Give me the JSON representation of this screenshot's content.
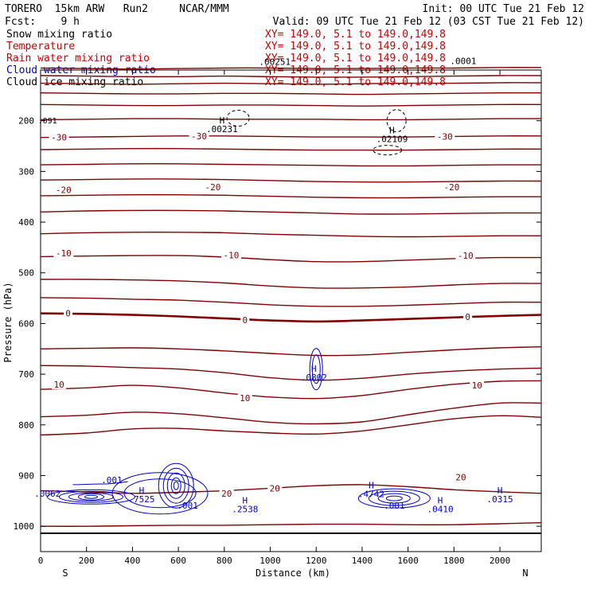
{
  "header": {
    "model": "TORERO  15km ARW   Run2     NCAR/MMM",
    "init": "Init: 00 UTC Tue 21 Feb 12",
    "fcst": "Fcst:    9 h",
    "valid": "Valid: 09 UTC Tue 21 Feb 12 (03 CST Tue 21 Feb 12)"
  },
  "colors": {
    "snow": "#000000",
    "temperature": "#800000",
    "rain": "#cc0000",
    "cloud_water": "#0000cc",
    "cloud_ice": "#000000",
    "axis": "#000000"
  },
  "legend": [
    {
      "name": "Snow mixing ratio",
      "xy": "XY= 149.0,  5.1 to 149.0,149.8",
      "color": "#000000"
    },
    {
      "name": "Temperature",
      "xy": "XY= 149.0,  5.1 to 149.0,149.8",
      "color": "#cc0000"
    },
    {
      "name": "Rain water mixing ratio",
      "xy": "XY= 149.0,  5.1 to 149.0,149.8",
      "color": "#cc0000"
    },
    {
      "name": "Cloud water mixing ratio",
      "xy": "XY= 149.0,  5.1 to 149.0,149.8",
      "color": "#0000cc"
    },
    {
      "name": "Cloud ice mixing ratio",
      "xy": "XY= 149.0,  5.1 to 149.0,149.8",
      "color": "#000000"
    }
  ],
  "overlap_labels": [
    {
      "text": ".00251",
      "x_km": 1020,
      "p": 90
    },
    {
      "text": ".0001",
      "x_km": 1840,
      "p": 88
    }
  ],
  "chart_data": {
    "type": "cross-section",
    "xlabel": "Distance (km)",
    "ylabel": "Pressure (hPa)",
    "xlim": [
      0,
      2180
    ],
    "plim": [
      100,
      1050
    ],
    "xticks": [
      0,
      200,
      400,
      600,
      800,
      1000,
      1200,
      1400,
      1600,
      1800,
      2000
    ],
    "yticks": [
      200,
      300,
      400,
      500,
      600,
      700,
      800,
      900,
      1000
    ],
    "x_ends": {
      "left": "S",
      "right": "N"
    },
    "temperature_isotherms": [
      {
        "p": [
          96,
          97,
          98,
          97,
          96,
          96,
          97,
          97,
          96,
          96,
          95,
          95
        ]
      },
      {
        "p": [
          111,
          112,
          113,
          113,
          112,
          113,
          114,
          114,
          113,
          112,
          111,
          111
        ]
      },
      {
        "p": [
          126,
          127,
          128,
          127,
          126,
          127,
          128,
          127,
          126,
          126,
          125,
          125
        ]
      },
      {
        "p": [
          145,
          146,
          147,
          147,
          146,
          146,
          147,
          148,
          147,
          146,
          145,
          145
        ]
      },
      {
        "p": [
          168,
          169,
          170,
          170,
          169,
          169,
          170,
          171,
          170,
          169,
          168,
          168
        ]
      },
      {
        "p": [
          198,
          197,
          196,
          196,
          197,
          197,
          197,
          198,
          198,
          197,
          196,
          196
        ]
      },
      {
        "p": [
          233,
          232,
          231,
          230,
          230,
          231,
          232,
          232,
          232,
          231,
          230,
          230
        ]
      },
      {
        "p": [
          257,
          256,
          255,
          255,
          256,
          257,
          258,
          258,
          258,
          257,
          256,
          256
        ]
      },
      {
        "p": [
          287,
          286,
          285,
          285,
          286,
          287,
          288,
          289,
          289,
          288,
          287,
          287
        ]
      },
      {
        "p": [
          317,
          316,
          315,
          315,
          316,
          318,
          320,
          321,
          321,
          320,
          319,
          319
        ]
      },
      {
        "p": [
          348,
          347,
          346,
          346,
          347,
          349,
          351,
          352,
          352,
          351,
          350,
          350
        ]
      },
      {
        "p": [
          380,
          378,
          377,
          377,
          378,
          380,
          382,
          384,
          384,
          383,
          382,
          382
        ]
      },
      {
        "p": [
          423,
          421,
          420,
          420,
          421,
          424,
          426,
          428,
          429,
          428,
          427,
          427
        ]
      },
      {
        "p": [
          468,
          467,
          466,
          466,
          469,
          474,
          478,
          478,
          475,
          472,
          470,
          470
        ]
      },
      {
        "p": [
          513,
          513,
          514,
          516,
          520,
          526,
          530,
          530,
          528,
          524,
          521,
          521
        ]
      },
      {
        "p": [
          549,
          550,
          552,
          554,
          558,
          563,
          566,
          566,
          564,
          561,
          558,
          558
        ]
      },
      {
        "p": [
          580,
          581,
          583,
          586,
          590,
          594,
          596,
          594,
          591,
          588,
          585,
          583
        ]
      },
      {
        "p": [
          650,
          649,
          648,
          650,
          654,
          659,
          663,
          662,
          657,
          652,
          648,
          646
        ]
      },
      {
        "p": [
          683,
          684,
          687,
          690,
          697,
          707,
          712,
          708,
          700,
          694,
          690,
          688
        ]
      },
      {
        "p": [
          730,
          727,
          722,
          727,
          737,
          745,
          748,
          742,
          730,
          720,
          714,
          713
        ]
      },
      {
        "p": [
          784,
          781,
          775,
          778,
          786,
          795,
          798,
          794,
          780,
          767,
          757,
          757
        ]
      },
      {
        "p": [
          820,
          816,
          808,
          807,
          812,
          816,
          818,
          812,
          800,
          788,
          782,
          785
        ]
      },
      {
        "p": [
          930,
          932,
          935,
          933,
          930,
          925,
          920,
          918,
          922,
          928,
          932,
          935
        ]
      },
      {
        "p": [
          1000,
          1000,
          999,
          998,
          998,
          997,
          996,
          996,
          997,
          997,
          995,
          993
        ]
      }
    ],
    "isotherm_x_km": [
      0,
      200,
      400,
      600,
      800,
      1000,
      1200,
      1400,
      1600,
      1800,
      2000,
      2180
    ],
    "freezing_isotherm_index": 16,
    "temperature_labels": [
      {
        "text": "-30",
        "x_km": 80,
        "p": 233
      },
      {
        "text": "-30",
        "x_km": 690,
        "p": 230
      },
      {
        "text": "-30",
        "x_km": 1760,
        "p": 231
      },
      {
        "text": "-20",
        "x_km": 100,
        "p": 336
      },
      {
        "text": "-20",
        "x_km": 750,
        "p": 331
      },
      {
        "text": "-20",
        "x_km": 1790,
        "p": 331
      },
      {
        "text": "-10",
        "x_km": 100,
        "p": 461
      },
      {
        "text": "-10",
        "x_km": 830,
        "p": 465
      },
      {
        "text": "-10",
        "x_km": 1850,
        "p": 466
      },
      {
        "text": "0",
        "x_km": 120,
        "p": 580
      },
      {
        "text": "0",
        "x_km": 890,
        "p": 593
      },
      {
        "text": "0",
        "x_km": 1860,
        "p": 587
      },
      {
        "text": "10",
        "x_km": 80,
        "p": 720
      },
      {
        "text": "10",
        "x_km": 890,
        "p": 747
      },
      {
        "text": "10",
        "x_km": 1900,
        "p": 722
      },
      {
        "text": "20",
        "x_km": 810,
        "p": 935
      },
      {
        "text": "20",
        "x_km": 1020,
        "p": 925
      },
      {
        "text": "20",
        "x_km": 1830,
        "p": 903
      }
    ],
    "max_labels": [
      {
        "h": "H",
        "value": ".00231",
        "x_km": 790,
        "p": 205,
        "color": "#000000"
      },
      {
        "h": "H",
        "value": ".02109",
        "x_km": 1530,
        "p": 225,
        "color": "#000000"
      },
      {
        "h": "H",
        "value": ".0802",
        "x_km": 1190,
        "p": 695,
        "color": "#0000cc"
      },
      {
        "h": "H",
        "value": ".7525",
        "x_km": 440,
        "p": 935,
        "color": "#0000cc"
      },
      {
        "h": "H",
        "value": ".2538",
        "x_km": 890,
        "p": 955,
        "color": "#0000cc"
      },
      {
        "h": "H",
        "value": ".4742",
        "x_km": 1440,
        "p": 925,
        "color": "#0000cc"
      },
      {
        "h": "H",
        "value": ".0410",
        "x_km": 1740,
        "p": 955,
        "color": "#0000cc"
      },
      {
        "h": "H",
        "value": ".0315",
        "x_km": 2000,
        "p": 935,
        "color": "#0000cc"
      }
    ],
    "cloud_water_contour_labels": [
      {
        "text": ".001",
        "x_km": 310,
        "p": 915
      },
      {
        "text": ".001",
        "x_km": 640,
        "p": 965
      },
      {
        "text": ".001",
        "x_km": 1540,
        "p": 965
      },
      {
        "text": ".0062",
        "x_km": 30,
        "p": 942
      }
    ],
    "side_label": {
      "text": ".091",
      "x_km": 30,
      "p": 205
    }
  }
}
